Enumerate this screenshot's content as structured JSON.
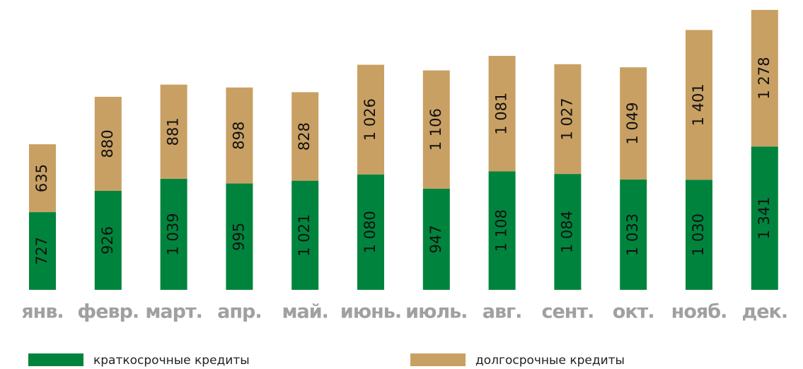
{
  "chart_data": {
    "type": "stacked-bar",
    "categories": [
      "янв.",
      "февр.",
      "март.",
      "апр.",
      "май.",
      "июнь.",
      "июль.",
      "авг.",
      "сент.",
      "окт.",
      "нояб.",
      "дек."
    ],
    "series": [
      {
        "name": "краткосрочные кредиты",
        "color": "#00843d",
        "values": [
          727,
          926,
          1039,
          995,
          1021,
          1080,
          947,
          1108,
          1084,
          1033,
          1030,
          1341
        ],
        "value_labels": [
          "727",
          "926",
          "1 039",
          "995",
          "1 021",
          "1 080",
          "947",
          "1 108",
          "1 084",
          "1 033",
          "1 030",
          "1 341"
        ]
      },
      {
        "name": "долгосрочные кредиты",
        "color": "#c9a063",
        "values": [
          635,
          880,
          881,
          898,
          828,
          1026,
          1106,
          1081,
          1027,
          1049,
          1401,
          1278
        ],
        "value_labels": [
          "635",
          "880",
          "881",
          "898",
          "828",
          "1 026",
          "1 106",
          "1 081",
          "1 027",
          "1 049",
          "1 401",
          "1 278"
        ]
      }
    ]
  }
}
